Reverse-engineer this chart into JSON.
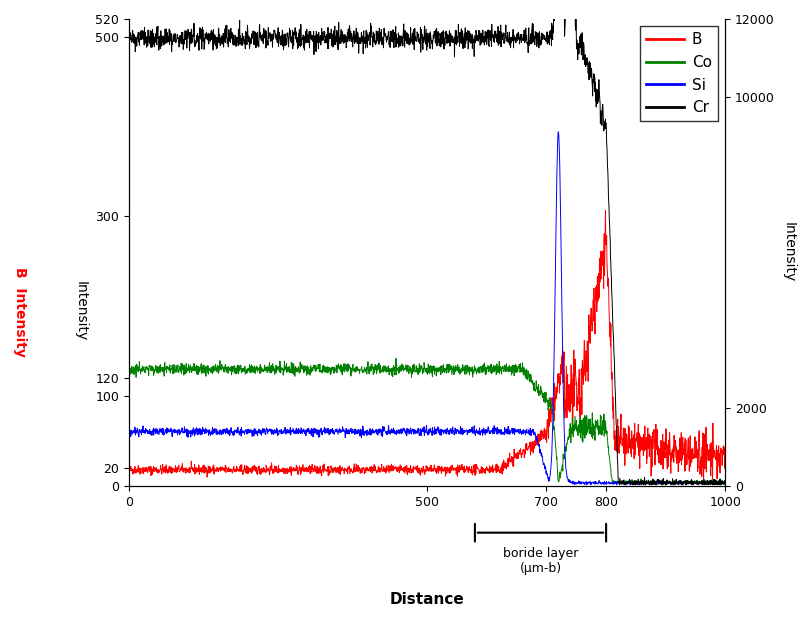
{
  "xlabel": "Distance",
  "ylabel_B": "B  Intensity",
  "ylabel_right": "Intensity",
  "ylim_left": [
    0,
    300
  ],
  "ylim_right": [
    0,
    12000
  ],
  "xlim": [
    0,
    1000
  ],
  "yticks_left": [
    0,
    20,
    100,
    120,
    500,
    520,
    300
  ],
  "yticks_right": [
    0,
    2000,
    10000,
    12000
  ],
  "xticks": [
    0,
    500,
    700,
    800,
    1000
  ],
  "legend_labels": [
    "B",
    "Co",
    "Si",
    "Cr"
  ],
  "legend_colors": [
    "red",
    "green",
    "blue",
    "black"
  ],
  "boride_xmin": 580,
  "boride_xmax": 800,
  "boride_label_line1": "boride layer",
  "boride_label_line2": "(μm-b)",
  "background": "#ffffff",
  "B_base": 18,
  "Co_base": 3000,
  "Si_base": 1400,
  "Cr_base": 11500
}
